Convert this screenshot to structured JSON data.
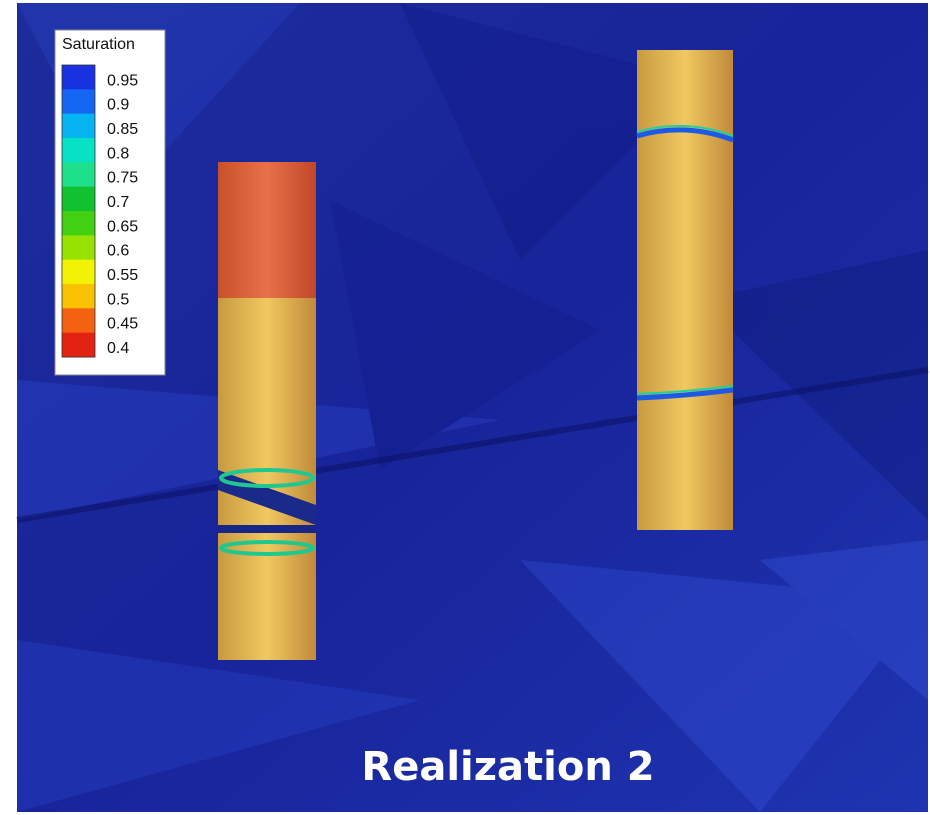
{
  "legend": {
    "title": "Saturation",
    "items": [
      {
        "label": "0.95",
        "color": "#1832e0"
      },
      {
        "label": "0.9",
        "color": "#1466f2"
      },
      {
        "label": "0.85",
        "color": "#06b4f2"
      },
      {
        "label": "0.8",
        "color": "#08e2c4"
      },
      {
        "label": "0.75",
        "color": "#1ee08a"
      },
      {
        "label": "0.7",
        "color": "#10c232"
      },
      {
        "label": "0.65",
        "color": "#44d012"
      },
      {
        "label": "0.6",
        "color": "#98e202"
      },
      {
        "label": "0.55",
        "color": "#f2f204"
      },
      {
        "label": "0.5",
        "color": "#f8c202"
      },
      {
        "label": "0.45",
        "color": "#f26212"
      },
      {
        "label": "0.4",
        "color": "#e22212"
      }
    ]
  },
  "caption": "Realization 2"
}
